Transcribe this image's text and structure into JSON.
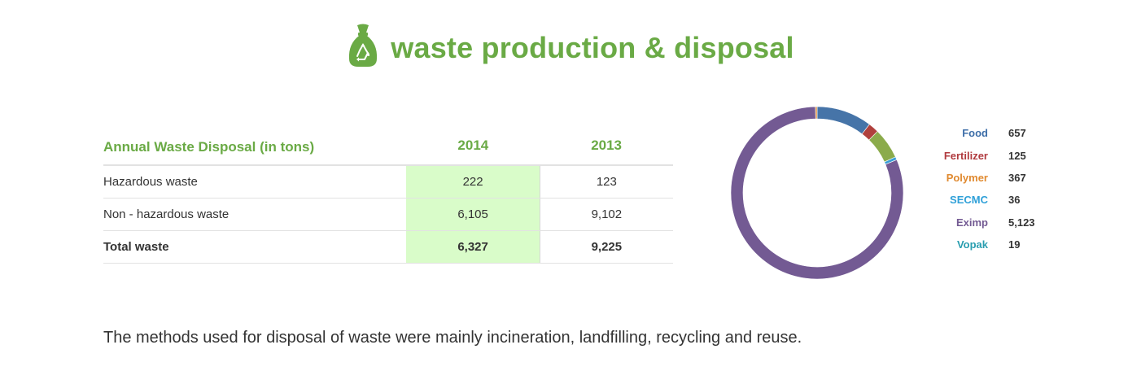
{
  "header": {
    "title": "waste production & disposal",
    "icon": "recycle-bag-icon",
    "accent_color": "#6aaa45"
  },
  "table": {
    "headers": [
      "Annual Waste Disposal (in tons)",
      "2014",
      "2013"
    ],
    "rows": [
      {
        "label": "Hazardous waste",
        "y2014": "222",
        "y2013": "123"
      },
      {
        "label": "Non - hazardous waste",
        "y2014": "6,105",
        "y2013": "9,102"
      },
      {
        "label": "Total waste",
        "y2014": "6,327",
        "y2013": "9,225"
      }
    ],
    "highlight_color": "#d9fcc9"
  },
  "chart_data": {
    "type": "pie",
    "donut": true,
    "title": "",
    "legend_position": "right",
    "slices": [
      {
        "name": "Food",
        "value": 657,
        "display": "657",
        "color": "#4674a8"
      },
      {
        "name": "Fertilizer",
        "value": 125,
        "display": "125",
        "color": "#b0403d"
      },
      {
        "name": "Polymer",
        "value": 367,
        "display": "367",
        "color": "#8bab4b"
      },
      {
        "name": "SECMC",
        "value": 36,
        "display": "36",
        "color": "#3b9fd7"
      },
      {
        "name": "Eximp",
        "value": 5123,
        "display": "5,123",
        "color": "#735a93"
      },
      {
        "name": "Vopak",
        "value": 19,
        "display": "19",
        "color": "#e08a30"
      }
    ],
    "legend_label_colors": {
      "Food": "#3d6ea8",
      "Fertilizer": "#b03a3e",
      "Polymer": "#e08a30",
      "SECMC": "#2fa0d8",
      "Eximp": "#735a93",
      "Vopak": "#2a9eb0"
    }
  },
  "footer": {
    "note": "The methods used for disposal of waste were mainly incineration, landfilling, recycling and reuse."
  }
}
